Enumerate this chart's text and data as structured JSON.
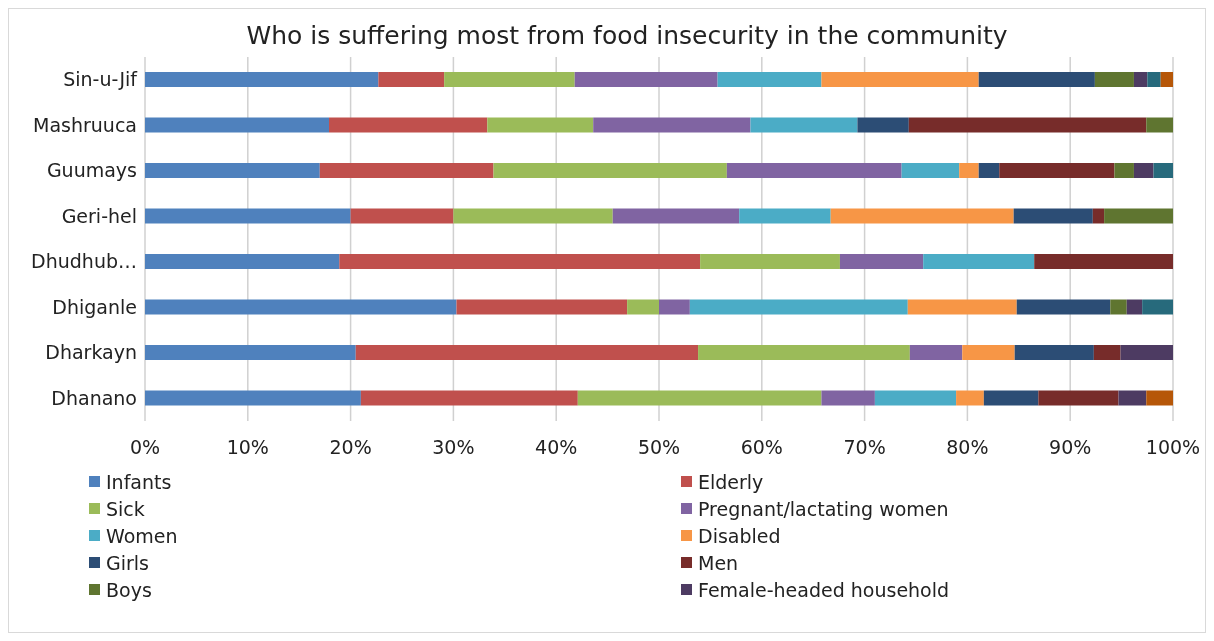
{
  "chart_data": {
    "type": "bar",
    "title": "Who is suffering most from food insecurity in the community",
    "orientation": "horizontal",
    "stacked": true,
    "categories": [
      "Sin-u-Jif",
      "Mashruuca",
      "Guumays",
      "Geri-hel",
      "Dhudhub…",
      "Dhiganle",
      "Dharkayn",
      "Dhanano"
    ],
    "series": [
      {
        "name": "Infants",
        "color": "#4f81bd",
        "values": [
          22.7,
          17.9,
          17.0,
          20.0,
          18.9,
          30.3,
          20.5,
          21.0
        ]
      },
      {
        "name": "Elderly",
        "color": "#c0504d",
        "values": [
          6.4,
          15.4,
          16.9,
          10.0,
          35.1,
          16.6,
          33.3,
          21.1
        ]
      },
      {
        "name": "Sick",
        "color": "#9bbb59",
        "values": [
          12.7,
          10.3,
          22.7,
          15.5,
          13.6,
          3.1,
          20.6,
          23.7
        ]
      },
      {
        "name": "Pregnant/lactating women",
        "color": "#8064a2",
        "values": [
          13.9,
          15.3,
          17.0,
          12.3,
          8.1,
          3.0,
          5.1,
          5.2
        ]
      },
      {
        "name": "Women",
        "color": "#4bacc6",
        "values": [
          10.1,
          10.4,
          5.6,
          8.9,
          10.8,
          21.2,
          0,
          7.9
        ]
      },
      {
        "name": "Disabled",
        "color": "#f79646",
        "values": [
          15.3,
          0,
          1.9,
          17.8,
          0,
          10.6,
          5.1,
          2.7
        ]
      },
      {
        "name": "Girls",
        "color": "#2c4d75",
        "values": [
          11.3,
          5.0,
          2.0,
          7.7,
          0,
          9.1,
          7.7,
          5.3
        ]
      },
      {
        "name": "Men",
        "color": "#772c2a",
        "values": [
          0,
          23.1,
          11.2,
          1.1,
          13.5,
          0,
          2.6,
          7.8
        ]
      },
      {
        "name": "Boys",
        "color": "#5f7530",
        "values": [
          3.8,
          2.6,
          1.9,
          6.7,
          0,
          1.6,
          0,
          0
        ]
      },
      {
        "name": "Female-headed household",
        "color": "#4d3b62",
        "values": [
          1.3,
          0,
          1.9,
          0,
          0,
          1.5,
          5.1,
          2.7
        ]
      },
      {
        "color": "#276a7c",
        "values": [
          1.3,
          0,
          1.9,
          0,
          0,
          3.0,
          0,
          0
        ]
      },
      {
        "color": "#b65708",
        "values": [
          1.2,
          0,
          0,
          0,
          0,
          0,
          0,
          2.6
        ]
      }
    ],
    "xlim": [
      0,
      100
    ],
    "xticks": [
      {
        "value": 0,
        "label": "0%"
      },
      {
        "value": 10,
        "label": "10%"
      },
      {
        "value": 20,
        "label": "20%"
      },
      {
        "value": 30,
        "label": "30%"
      },
      {
        "value": 40,
        "label": "40%"
      },
      {
        "value": 50,
        "label": "50%"
      },
      {
        "value": 60,
        "label": "60%"
      },
      {
        "value": 70,
        "label": "70%"
      },
      {
        "value": 80,
        "label": "80%"
      },
      {
        "value": 90,
        "label": "90%"
      },
      {
        "value": 100,
        "label": "100%"
      }
    ],
    "grid": "x",
    "legend": "bottom"
  }
}
